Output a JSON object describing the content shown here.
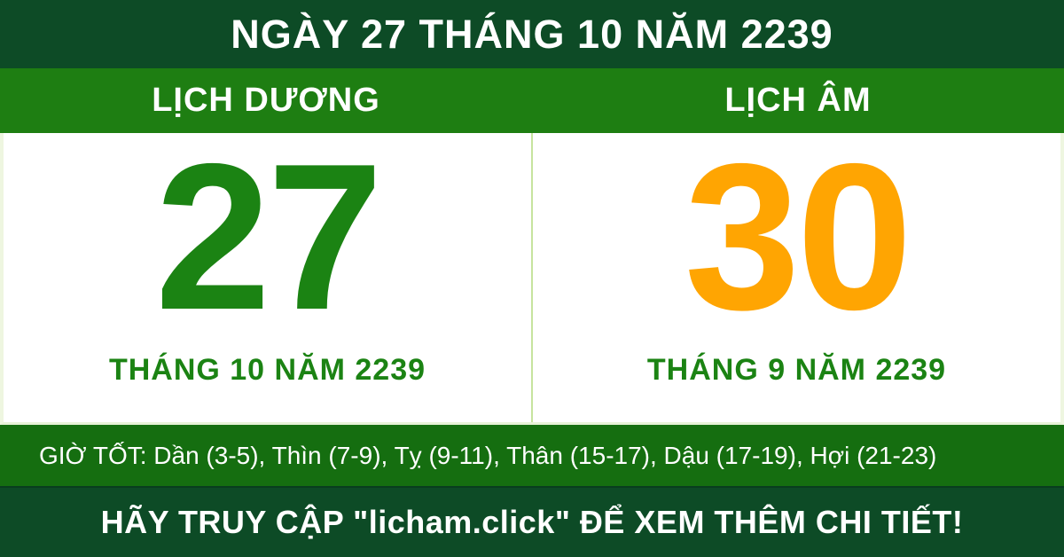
{
  "header": {
    "title": "NGÀY 27 THÁNG 10 NĂM 2239"
  },
  "calendar": {
    "solar": {
      "label": "LỊCH DƯƠNG",
      "day": "27",
      "month_year": "THÁNG 10 NĂM 2239"
    },
    "lunar": {
      "label": "LỊCH ÂM",
      "day": "30",
      "month_year": "THÁNG 9 NĂM 2239"
    }
  },
  "good_hours": {
    "text": "GIỜ TỐT: Dần (3-5), Thìn (7-9), Tỵ (9-11), Thân (15-17), Dậu (17-19), Hợi (21-23)"
  },
  "footer": {
    "text": "HÃY TRUY CẬP \"licham.click\" ĐỂ XEM THÊM CHI TIẾT!"
  },
  "colors": {
    "dark_green_bar": "#0d4b26",
    "band_green": "#1e7e12",
    "hours_band_green": "#156e10",
    "solar_day_green": "#1b8313",
    "lunar_day_orange": "#ffa502",
    "divider_light_green": "#c6e49e",
    "text_white": "#ffffff"
  }
}
